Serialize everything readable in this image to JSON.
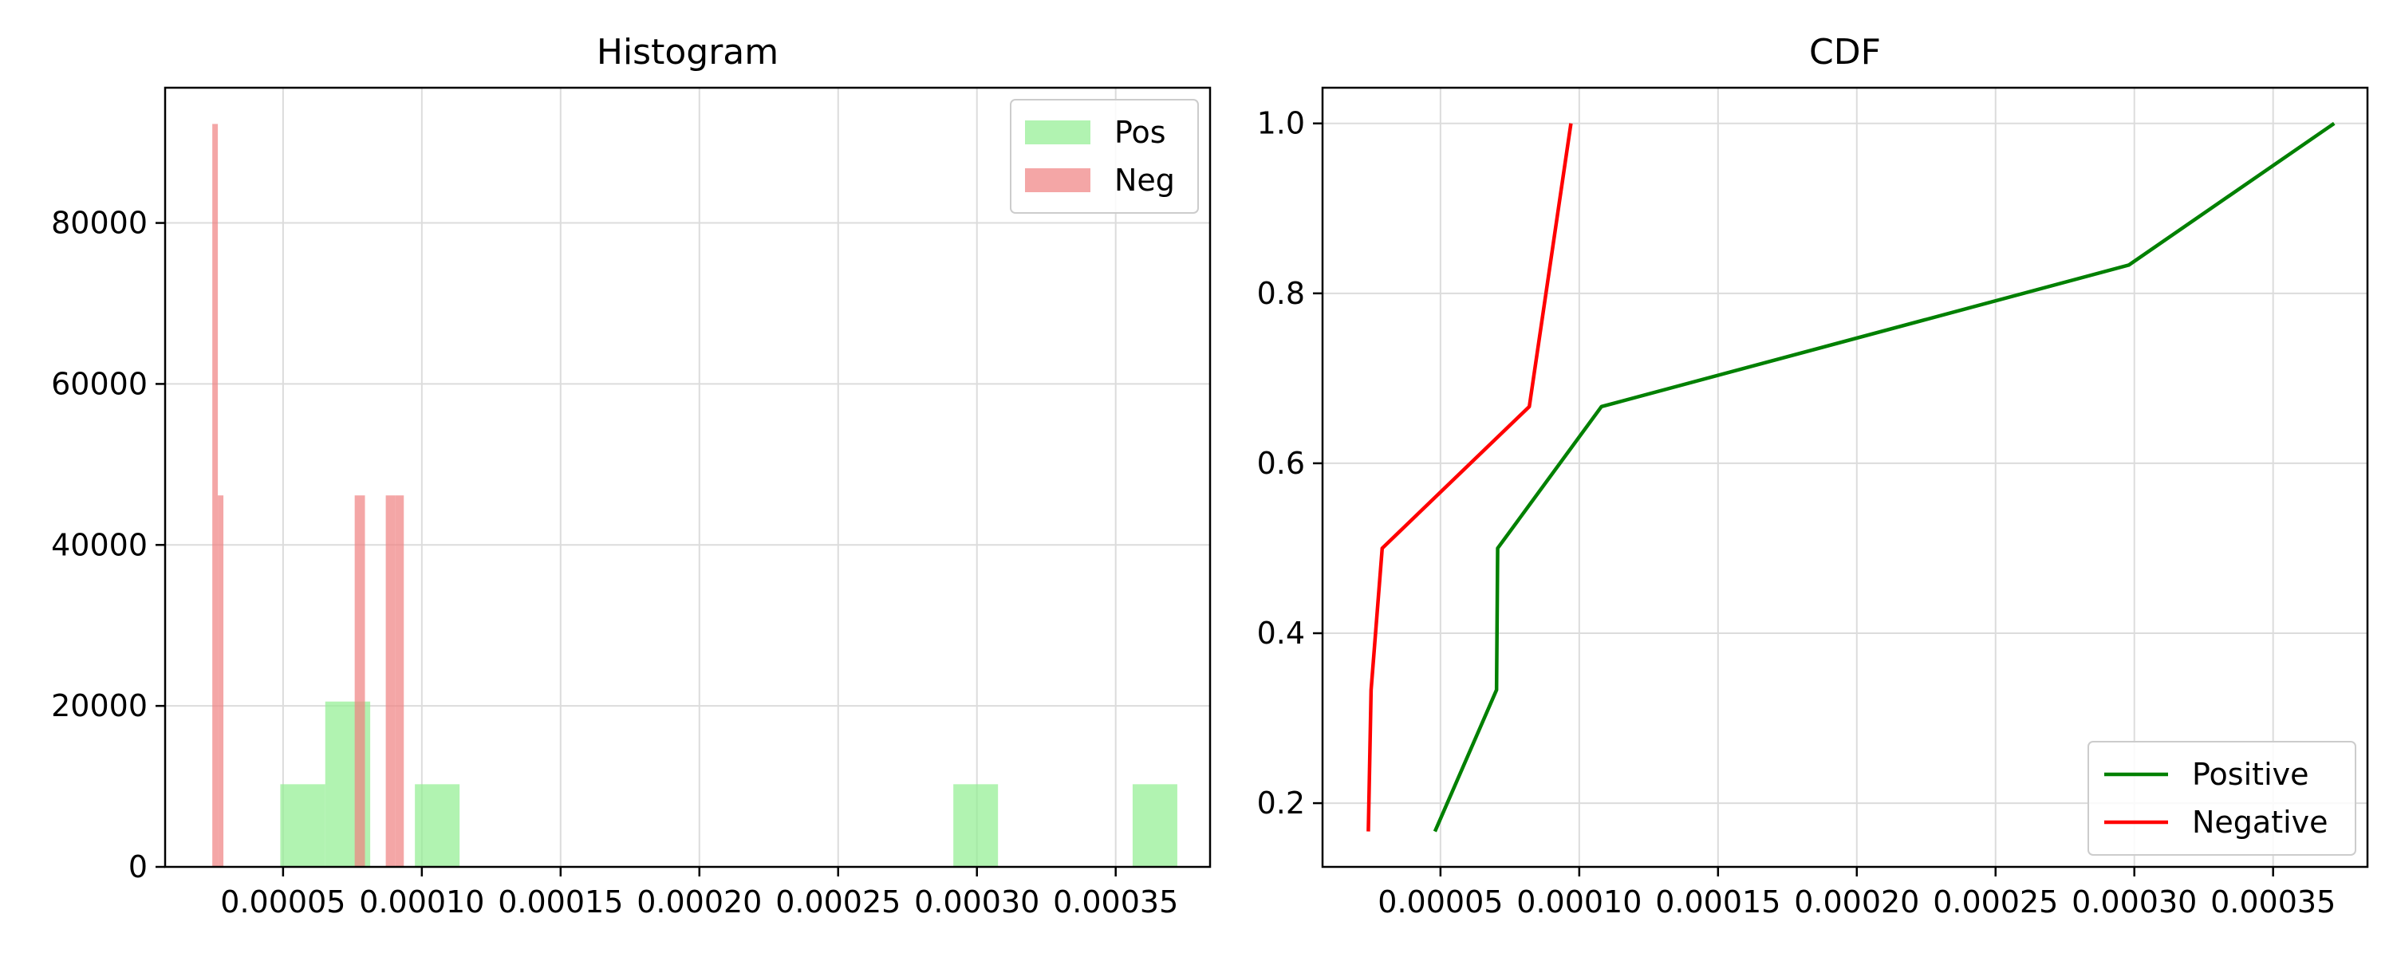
{
  "chart_data": [
    {
      "type": "bar",
      "title": "Histogram",
      "xlabel": "",
      "ylabel": "",
      "xlim": [
        7.5e-06,
        0.000384
      ],
      "ylim": [
        0,
        96800
      ],
      "xticks": [
        5e-05,
        0.0001,
        0.00015,
        0.0002,
        0.00025,
        0.0003,
        0.00035
      ],
      "xtick_labels": [
        "0.00005",
        "0.00010",
        "0.00015",
        "0.00020",
        "0.00025",
        "0.00030",
        "0.00035"
      ],
      "yticks": [
        0,
        20000,
        40000,
        60000,
        80000
      ],
      "ytick_labels": [
        "0",
        "20000",
        "40000",
        "60000",
        "80000"
      ],
      "grid": true,
      "legend_position": "top-right",
      "series": [
        {
          "name": "Pos",
          "color": "#90ee90",
          "opacity": 0.7,
          "bins": [
            {
              "x0": 4.9e-05,
              "x1": 6.52e-05,
              "value": 10270
            },
            {
              "x0": 6.52e-05,
              "x1": 8.14e-05,
              "value": 20540
            },
            {
              "x0": 9.75e-05,
              "x1": 0.0001136,
              "value": 10270
            },
            {
              "x0": 0.0002915,
              "x1": 0.0003076,
              "value": 10270
            },
            {
              "x0": 0.0003561,
              "x1": 0.0003722,
              "value": 10270
            }
          ]
        },
        {
          "name": "Neg",
          "color": "#f08080",
          "opacity": 0.7,
          "bins": [
            {
              "x0": 2.45e-05,
              "x1": 2.65e-05,
              "value": 92300
            },
            {
              "x0": 2.65e-05,
              "x1": 2.85e-05,
              "value": 46150
            },
            {
              "x0": 7.58e-05,
              "x1": 7.95e-05,
              "value": 46150
            },
            {
              "x0": 8.7e-05,
              "x1": 9.05e-05,
              "value": 46150
            },
            {
              "x0": 9.05e-05,
              "x1": 9.35e-05,
              "value": 46150
            }
          ]
        }
      ]
    },
    {
      "type": "line",
      "title": "CDF",
      "xlabel": "",
      "ylabel": "",
      "xlim": [
        7.5e-06,
        0.000384
      ],
      "ylim": [
        0.125,
        1.042
      ],
      "xticks": [
        5e-05,
        0.0001,
        0.00015,
        0.0002,
        0.00025,
        0.0003,
        0.00035
      ],
      "xtick_labels": [
        "0.00005",
        "0.00010",
        "0.00015",
        "0.00020",
        "0.00025",
        "0.00030",
        "0.00035"
      ],
      "yticks": [
        0.2,
        0.4,
        0.6,
        0.8,
        1.0
      ],
      "ytick_labels": [
        "0.2",
        "0.4",
        "0.6",
        "0.8",
        "1.0"
      ],
      "grid": true,
      "legend_position": "lower-right",
      "series": [
        {
          "name": "Positive",
          "color": "#008000",
          "x": [
            4.8e-05,
            7.02e-05,
            7.06e-05,
            0.000108,
            0.000298,
            0.000372
          ],
          "y": [
            0.1667,
            0.3333,
            0.5,
            0.6667,
            0.8333,
            1.0
          ]
        },
        {
          "name": "Negative",
          "color": "#ff0000",
          "x": [
            2.4e-05,
            2.5e-05,
            2.9e-05,
            8.2e-05,
            9.7e-05
          ],
          "y": [
            0.1667,
            0.3333,
            0.5,
            0.6667,
            1.0
          ]
        }
      ]
    }
  ]
}
